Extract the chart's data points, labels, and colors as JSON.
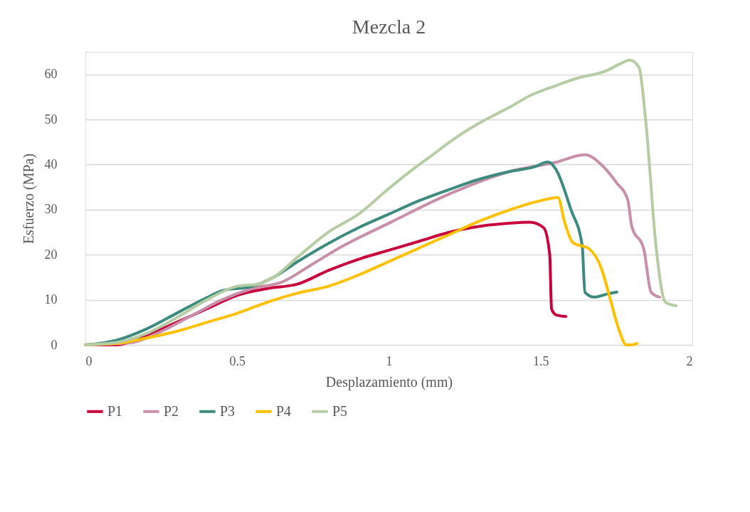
{
  "chart_data": {
    "type": "line",
    "title": "Mezcla 2",
    "xlabel": "Desplazamiento (mm)",
    "ylabel": "Esfuerzo (MPa)",
    "xlim": [
      0,
      2
    ],
    "xticks": [
      0,
      0.5,
      1,
      1.5,
      2
    ],
    "ylim": [
      0,
      65
    ],
    "yticks": [
      0,
      10,
      20,
      30,
      40,
      50,
      60
    ],
    "grid": "y",
    "legend": "bottom",
    "marker": "none",
    "line_style": "solid",
    "series": [
      {
        "name": "P1",
        "color": "#c8003c",
        "x": [
          0,
          0.1,
          0.2,
          0.3,
          0.4,
          0.5,
          0.6,
          0.7,
          0.8,
          0.9,
          1.0,
          1.1,
          1.2,
          1.3,
          1.4,
          1.465,
          1.51,
          1.53,
          1.536,
          1.55,
          1.583
        ],
        "values": [
          0,
          0,
          2,
          5,
          8,
          11,
          12.5,
          13.5,
          16.5,
          19,
          21,
          23,
          25,
          26.3,
          27,
          27.2,
          26,
          20,
          8,
          6.7,
          6.3
        ]
      },
      {
        "name": "P2",
        "color": "#c88fa8",
        "x": [
          0,
          0.15,
          0.25,
          0.35,
          0.45,
          0.55,
          0.65,
          0.75,
          0.85,
          1.0,
          1.2,
          1.4,
          1.55,
          1.646,
          1.7,
          1.75,
          1.787,
          1.8,
          1.84,
          1.864,
          1.892
        ],
        "values": [
          0,
          0.5,
          3,
          6.5,
          10,
          12.5,
          14,
          18,
          22,
          27,
          33.5,
          38.5,
          40.5,
          42.2,
          40,
          36,
          32.2,
          26.4,
          21.2,
          11.7,
          10.6
        ]
      },
      {
        "name": "P3",
        "color": "#3d8a7e",
        "x": [
          0,
          0.1,
          0.2,
          0.3,
          0.4,
          0.45,
          0.55,
          0.62,
          0.7,
          0.8,
          0.9,
          1.0,
          1.1,
          1.2,
          1.3,
          1.4,
          1.48,
          1.524,
          1.55,
          1.6,
          1.637,
          1.646,
          1.676,
          1.72,
          1.751
        ],
        "values": [
          0,
          1,
          3.5,
          7,
          10.5,
          12,
          13,
          15,
          18.5,
          22.5,
          26,
          29,
          32,
          34.5,
          36.8,
          38.5,
          39.5,
          40.6,
          39,
          30,
          22,
          11.7,
          10.6,
          11.3,
          11.7
        ]
      },
      {
        "name": "P4",
        "color": "#ffc000",
        "x": [
          0,
          0.1,
          0.2,
          0.3,
          0.4,
          0.5,
          0.6,
          0.7,
          0.8,
          0.9,
          1.0,
          1.1,
          1.2,
          1.3,
          1.4,
          1.5,
          1.557,
          1.58,
          1.606,
          1.66,
          1.7,
          1.73,
          1.76,
          1.782,
          1.8,
          1.817
        ],
        "values": [
          0,
          0.3,
          1.5,
          3,
          5,
          7,
          9.5,
          11.5,
          13,
          15.5,
          18.5,
          21.5,
          24.5,
          27.5,
          30,
          32,
          32.7,
          27,
          22.7,
          21.3,
          17,
          10,
          3,
          0,
          0,
          0.3
        ]
      },
      {
        "name": "P5",
        "color": "#b5cca4",
        "x": [
          0,
          0.1,
          0.2,
          0.3,
          0.4,
          0.5,
          0.57,
          0.62,
          0.7,
          0.8,
          0.9,
          1.0,
          1.1,
          1.153,
          1.2,
          1.3,
          1.4,
          1.465,
          1.55,
          1.622,
          1.716,
          1.76,
          1.794,
          1.824,
          1.848,
          1.88,
          1.911,
          1.946
        ],
        "values": [
          0,
          0.5,
          2.5,
          6,
          10,
          13,
          13.5,
          15,
          19.5,
          25,
          29,
          34.7,
          40,
          42.6,
          45,
          49.3,
          52.8,
          55.3,
          57.5,
          59.2,
          60.8,
          62.3,
          63.2,
          61.6,
          48.5,
          22,
          9.5,
          8.7
        ]
      }
    ]
  }
}
